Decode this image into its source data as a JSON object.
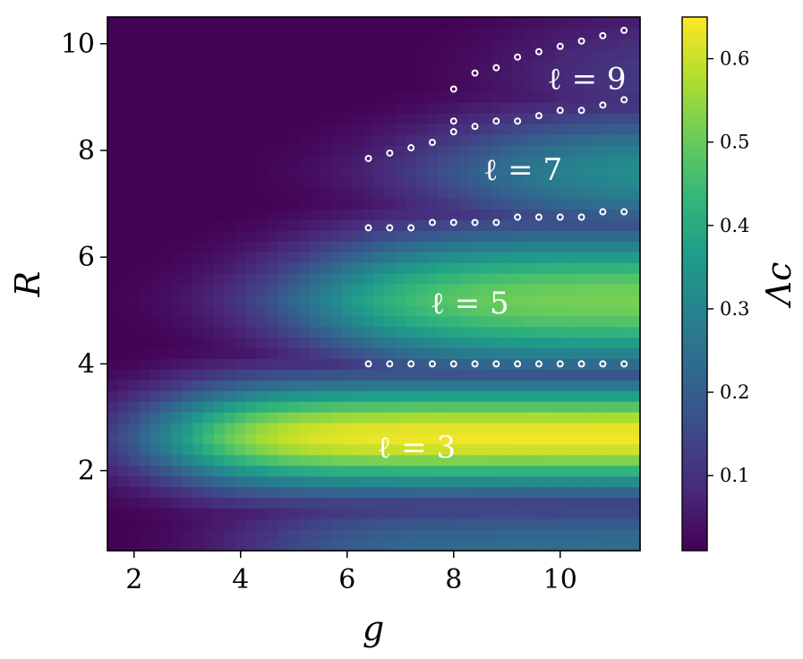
{
  "chart_data": {
    "type": "heatmap",
    "xlabel": "g",
    "ylabel": "R",
    "xlim": [
      1.5,
      11.5
    ],
    "ylim": [
      0.5,
      10.5
    ],
    "xticks": [
      2,
      4,
      6,
      8,
      10
    ],
    "yticks": [
      2,
      4,
      6,
      8,
      10
    ],
    "colorbar": {
      "label": "Λc",
      "colormap": "viridis",
      "range": [
        0.01,
        0.65
      ],
      "ticks": [
        0.1,
        0.2,
        0.3,
        0.4,
        0.5,
        0.6
      ]
    },
    "grid": false,
    "annotations": [
      {
        "text": "ℓ = 3",
        "g": 7.3,
        "R": 2.45
      },
      {
        "text": "ℓ = 5",
        "g": 8.3,
        "R": 5.15
      },
      {
        "text": "ℓ = 7",
        "g": 9.3,
        "R": 7.65
      },
      {
        "text": "ℓ = 9",
        "g": 10.5,
        "R": 9.35
      }
    ],
    "boundary_points": [
      {
        "name": "ℓ=3/5",
        "g": [
          6.4,
          6.8,
          7.2,
          7.6,
          8.0,
          8.4,
          8.8,
          9.2,
          9.6,
          10.0,
          10.4,
          10.8,
          11.2
        ],
        "R": [
          4.0,
          4.0,
          4.0,
          4.0,
          4.0,
          4.0,
          4.0,
          4.0,
          4.0,
          4.0,
          4.0,
          4.0,
          4.0
        ]
      },
      {
        "name": "ℓ=5/7",
        "g": [
          6.4,
          6.8,
          7.2,
          7.6,
          8.0,
          8.4,
          8.8,
          9.2,
          9.6,
          10.0,
          10.4,
          10.8,
          11.2
        ],
        "R": [
          6.55,
          6.55,
          6.55,
          6.65,
          6.65,
          6.65,
          6.65,
          6.75,
          6.75,
          6.75,
          6.75,
          6.85,
          6.85
        ]
      },
      {
        "name": "ℓ=7/9",
        "g": [
          6.4,
          6.8,
          7.2,
          7.6,
          8.0,
          8.0,
          8.4,
          8.8,
          9.2,
          9.6,
          10.0,
          10.4,
          10.8,
          11.2
        ],
        "R": [
          7.85,
          7.95,
          8.05,
          8.15,
          8.35,
          8.55,
          8.45,
          8.55,
          8.55,
          8.65,
          8.75,
          8.75,
          8.85,
          8.95
        ]
      },
      {
        "name": "ℓ=9/11",
        "g": [
          8.0,
          8.4,
          8.8,
          9.2,
          9.6,
          10.0,
          10.4,
          10.8,
          11.2
        ],
        "R": [
          9.15,
          9.45,
          9.55,
          9.75,
          9.85,
          9.95,
          10.05,
          10.15,
          10.25
        ]
      }
    ]
  }
}
